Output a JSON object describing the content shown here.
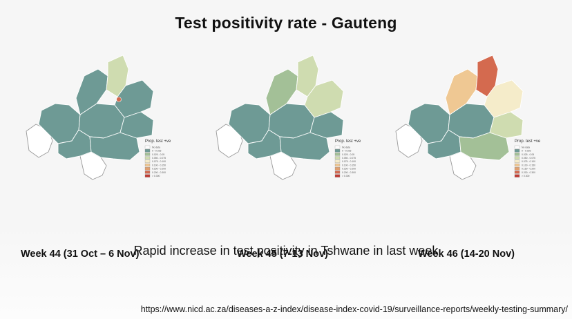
{
  "slide": {
    "title": "Test positivity rate - Gauteng",
    "subtitle": "Rapid increase in test positivity in Tshwane in last week",
    "source": "https://www.nicd.ac.za/diseases-a-z-index/disease-index-covid-19/surveillance-reports/weekly-testing-summary/"
  },
  "legend": {
    "title": "Prop. test +ve",
    "items": [
      {
        "label": "No data",
        "color": "#ffffff"
      },
      {
        "label": "0 - 0.025",
        "color": "#6e9a95"
      },
      {
        "label": "0.025 - 0.05",
        "color": "#a3c097"
      },
      {
        "label": "0.050 - 0.075",
        "color": "#cfdcb0"
      },
      {
        "label": "0.075 - 0.100",
        "color": "#f5ecca"
      },
      {
        "label": "0.100 - 0.150",
        "color": "#efc893"
      },
      {
        "label": "0.150 - 0.200",
        "color": "#e1a06e"
      },
      {
        "label": "0.200 - 0.300",
        "color": "#d46a4f"
      },
      {
        "label": "> 0.300",
        "color": "#bf3b34"
      }
    ]
  },
  "maps": [
    {
      "caption": "Week 44 (31 Oct – 6 Nov)",
      "regions": {
        "west": "#6e9a95",
        "central": "#6e9a95",
        "east": "#6e9a95",
        "south": "#6e9a95",
        "southeast": "#6e9a95",
        "tshwane_north": "#cfdcb0",
        "tshwane_west": "#6e9a95",
        "tshwane_east": "#6e9a95",
        "far_west": "#ffffff",
        "sedibeng": "#ffffff"
      },
      "hotspot": "#d46a4f"
    },
    {
      "caption": "Week 45 (7-13 Nov)",
      "regions": {
        "west": "#6e9a95",
        "central": "#6e9a95",
        "east": "#6e9a95",
        "south": "#6e9a95",
        "southeast": "#6e9a95",
        "tshwane_north": "#cfdcb0",
        "tshwane_west": "#a3c097",
        "tshwane_east": "#cfdcb0",
        "far_west": "#ffffff",
        "sedibeng": "#ffffff"
      },
      "hotspot": ""
    },
    {
      "caption": "Week 46 (14-20 Nov)",
      "regions": {
        "west": "#6e9a95",
        "central": "#6e9a95",
        "east": "#cfdcb0",
        "south": "#6e9a95",
        "southeast": "#a3c097",
        "tshwane_north": "#d46a4f",
        "tshwane_west": "#efc893",
        "tshwane_east": "#f5ecca",
        "far_west": "#ffffff",
        "sedibeng": "#ffffff"
      },
      "hotspot": ""
    }
  ]
}
